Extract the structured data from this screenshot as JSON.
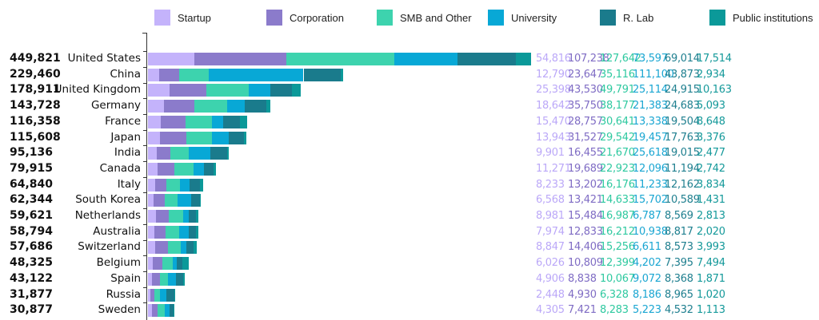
{
  "chart_data": {
    "type": "bar",
    "orientation": "horizontal",
    "stacked": true,
    "legend_position": "top",
    "categories": [
      "United States",
      "China",
      "United Kingdom",
      "Germany",
      "France",
      "Japan",
      "India",
      "Canada",
      "Italy",
      "South Korea",
      "Netherlands",
      "Australia",
      "Switzerland",
      "Belgium",
      "Spain",
      "Russia",
      "Sweden"
    ],
    "totals": [
      "449,821",
      "229,460",
      "178,911",
      "143,728",
      "116,358",
      "115,608",
      "95,136",
      "79,915",
      "64,840",
      "62,344",
      "59,621",
      "58,794",
      "57,686",
      "48,325",
      "43,122",
      "31,877",
      "30,877"
    ],
    "series": [
      {
        "name": "Startup",
        "color": "#c4b3fb",
        "text_color": "#bba8f8",
        "values": [
          54816,
          12790,
          25398,
          18642,
          15470,
          13943,
          9901,
          11271,
          8233,
          6568,
          8981,
          7974,
          8847,
          6026,
          4906,
          2448,
          4305
        ]
      },
      {
        "name": "Corporation",
        "color": "#8b7bcb",
        "text_color": "#7f6cc4",
        "values": [
          107238,
          23647,
          43530,
          35750,
          28757,
          31527,
          16455,
          19689,
          13202,
          13421,
          15484,
          12833,
          14406,
          10809,
          8838,
          4930,
          7421
        ]
      },
      {
        "name": "SMB and Other",
        "color": "#3dd3ae",
        "text_color": "#2fc9a0",
        "values": [
          127642,
          35116,
          49791,
          38177,
          30641,
          29542,
          21670,
          22923,
          16176,
          14633,
          16987,
          16212,
          15256,
          12399,
          10067,
          6328,
          8283
        ]
      },
      {
        "name": "University",
        "color": "#08a8d6",
        "text_color": "#1aa6d2",
        "values": [
          73597,
          111100,
          25114,
          21383,
          13338,
          19457,
          25618,
          12096,
          11233,
          15702,
          6787,
          10938,
          6611,
          4202,
          9072,
          8186,
          5223
        ]
      },
      {
        "name": "R. Lab",
        "color": "#1a7b8c",
        "text_color": "#1f7f8f",
        "values": [
          69014,
          43873,
          24915,
          24683,
          19504,
          17763,
          19015,
          11194,
          12162,
          10589,
          8569,
          8817,
          8573,
          7395,
          8368,
          8965,
          4532
        ]
      },
      {
        "name": "Public institutions",
        "color": "#0b9999",
        "text_color": "#14999a",
        "values": [
          17514,
          2934,
          10163,
          5093,
          8648,
          3376,
          2477,
          2742,
          3834,
          1431,
          2813,
          2020,
          3993,
          7494,
          1871,
          1020,
          1113
        ]
      }
    ]
  }
}
